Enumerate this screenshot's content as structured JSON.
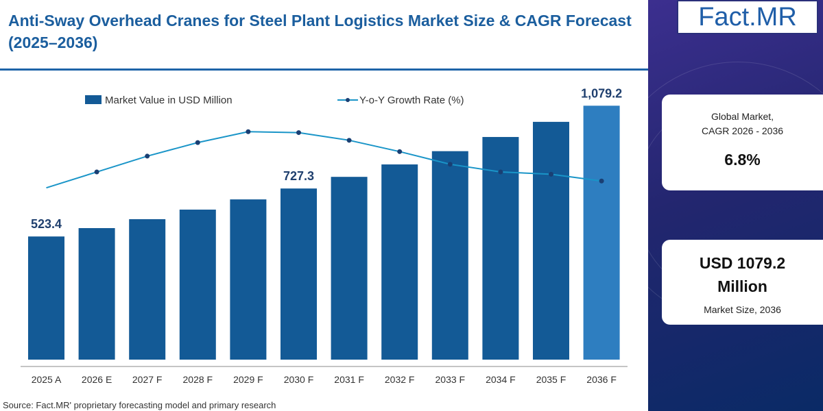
{
  "title": "Anti-Sway Overhead Cranes for Steel Plant Logistics Market Size & CAGR Forecast (2025–2036)",
  "source": "Source: Fact.MR' proprietary forecasting model and primary research",
  "logo": {
    "left": "Fact",
    "right": ".MR"
  },
  "cards": {
    "cagr": {
      "label_line1": "Global Market,",
      "label_line2": "CAGR 2026 - 2036",
      "value": "6.8%"
    },
    "size": {
      "value_line1": "USD 1079.2",
      "value_line2": "Million",
      "label": "Market Size, 2036"
    }
  },
  "colors": {
    "bar": "#135a96",
    "bar_last": "#2e7ec0",
    "line": "#1a95c8",
    "title": "#1b5e9e",
    "panel": "#23266f"
  },
  "chart_data": {
    "type": "bar",
    "categories": [
      "2025 A",
      "2026 E",
      "2027 F",
      "2028 F",
      "2029 F",
      "2030 F",
      "2031 F",
      "2032 F",
      "2033 F",
      "2034 F",
      "2035 F",
      "2036 F"
    ],
    "series": [
      {
        "name": "Market Value in USD Million",
        "type": "bar",
        "values": [
          523.4,
          559.0,
          597.0,
          637.6,
          681.0,
          727.3,
          776.8,
          829.6,
          886.0,
          946.3,
          1010.6,
          1079.2
        ]
      },
      {
        "name": "Y-o-Y Growth Rate (%)",
        "type": "line",
        "values": [
          6.2,
          6.55,
          6.9,
          7.2,
          7.44,
          7.42,
          7.25,
          7.0,
          6.72,
          6.55,
          6.5,
          6.35
        ]
      }
    ],
    "data_labels": [
      {
        "index": 0,
        "text": "523.4"
      },
      {
        "index": 5,
        "text": "727.3"
      },
      {
        "index": 11,
        "text": "1,079.2"
      }
    ],
    "legend": "top",
    "ylim": [
      0,
      1150
    ],
    "ylim_right": [
      5.4,
      7.55
    ]
  }
}
